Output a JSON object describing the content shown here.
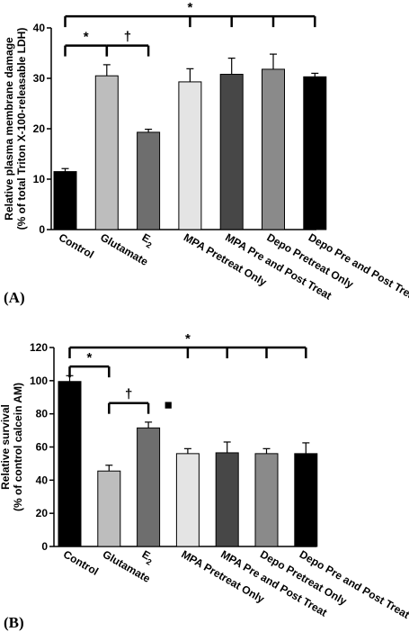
{
  "figure": {
    "panels": [
      {
        "label": "(A)"
      },
      {
        "label": "(B)"
      }
    ]
  },
  "chart_data": [
    {
      "type": "bar",
      "panel": "(A)",
      "ylabel": [
        "Relative plasma membrane damage",
        "(% of total Triton X-100-releasable LDH)"
      ],
      "ylim": [
        0,
        40
      ],
      "yticks": [
        0,
        10,
        20,
        30,
        40
      ],
      "categories": [
        "Control",
        "Glutamate",
        "E2",
        "MPA Pretreat Only",
        "MPA Pre and Post Treat",
        "Depo Pretreat Only",
        "Depo Pre and Post Treat"
      ],
      "category_subscript": {
        "E2": "2"
      },
      "values": [
        11.5,
        30.5,
        19.3,
        29.3,
        30.8,
        31.8,
        30.3
      ],
      "errors": [
        0.6,
        2.2,
        0.6,
        2.6,
        3.2,
        3.0,
        0.7
      ],
      "bar_colors": [
        "#000000",
        "#bdbdbd",
        "#6e6e6e",
        "#e4e4e4",
        "#474747",
        "#8a8a8a",
        "#000000"
      ],
      "annotations": [
        {
          "symbol": "*",
          "from": "Control",
          "to": "Glutamate",
          "level": 36.5
        },
        {
          "symbol": "†",
          "from": "Glutamate",
          "to": "E2",
          "level": 36.5
        },
        {
          "symbol": "*",
          "from": "Control",
          "to": "Depo Pre and Post Treat",
          "drops_to": [
            "MPA Pretreat Only",
            "MPA Pre and Post Treat",
            "Depo Pretreat Only",
            "Depo Pre and Post Treat"
          ],
          "level": 42.3
        }
      ]
    },
    {
      "type": "bar",
      "panel": "(B)",
      "ylabel": [
        "Relative survival",
        "(% of control calcein AM)"
      ],
      "ylim": [
        0,
        120
      ],
      "yticks": [
        0,
        20,
        40,
        60,
        80,
        100,
        120
      ],
      "categories": [
        "Control",
        "Glutamate",
        "E2",
        "MPA Pretreat Only",
        "MPA Pre and Post Treat",
        "Depo Pretreat Only",
        "Depo Pre and Post Treat"
      ],
      "category_subscript": {
        "E2": "2"
      },
      "values": [
        99.5,
        45.5,
        71.5,
        56.0,
        56.5,
        56.0,
        56.0
      ],
      "errors": [
        3.5,
        3.5,
        3.5,
        3.0,
        6.5,
        3.0,
        6.5
      ],
      "bar_colors": [
        "#000000",
        "#bdbdbd",
        "#6e6e6e",
        "#e4e4e4",
        "#474747",
        "#8a8a8a",
        "#000000"
      ],
      "annotations": [
        {
          "symbol": "*",
          "from": "Control",
          "to": "Glutamate",
          "level": 108.5
        },
        {
          "symbol": "†",
          "from": "Glutamate",
          "to": "E2",
          "level": 86.5
        },
        {
          "symbol": "■",
          "at": "E2",
          "level": 85
        },
        {
          "symbol": "*",
          "from": "Control",
          "to": "Depo Pre and Post Treat",
          "drops_to": [
            "MPA Pretreat Only",
            "MPA Pre and Post Treat",
            "Depo Pretreat Only",
            "Depo Pre and Post Treat"
          ],
          "level": 120
        }
      ]
    }
  ]
}
